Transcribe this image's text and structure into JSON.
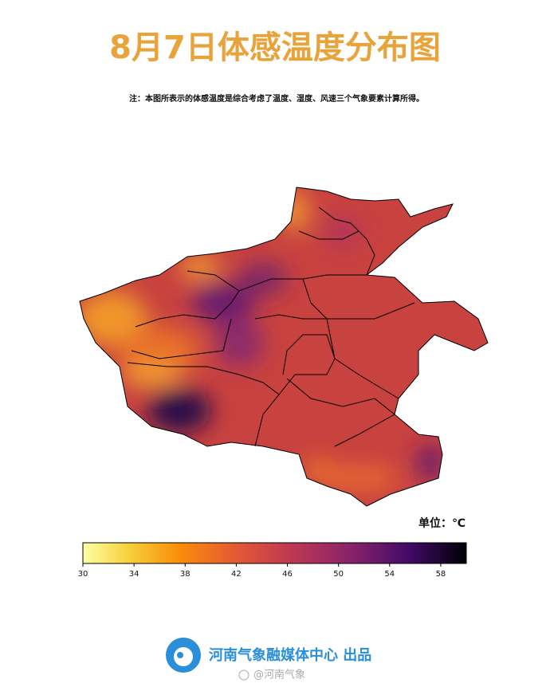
{
  "title": "8月7日体感温度分布图",
  "note": "注：本图所表示的体感温度是综合考虑了温度、湿度、风速三个气象要素计算所得。",
  "unit_label": "单位：℃",
  "colorbar": {
    "lim": [
      30,
      60
    ],
    "ticks": [
      30,
      34,
      38,
      42,
      46,
      50,
      54,
      58
    ]
  },
  "footer": {
    "org": "河南气象融媒体中心 出品",
    "watermark": "@河南气象"
  }
}
